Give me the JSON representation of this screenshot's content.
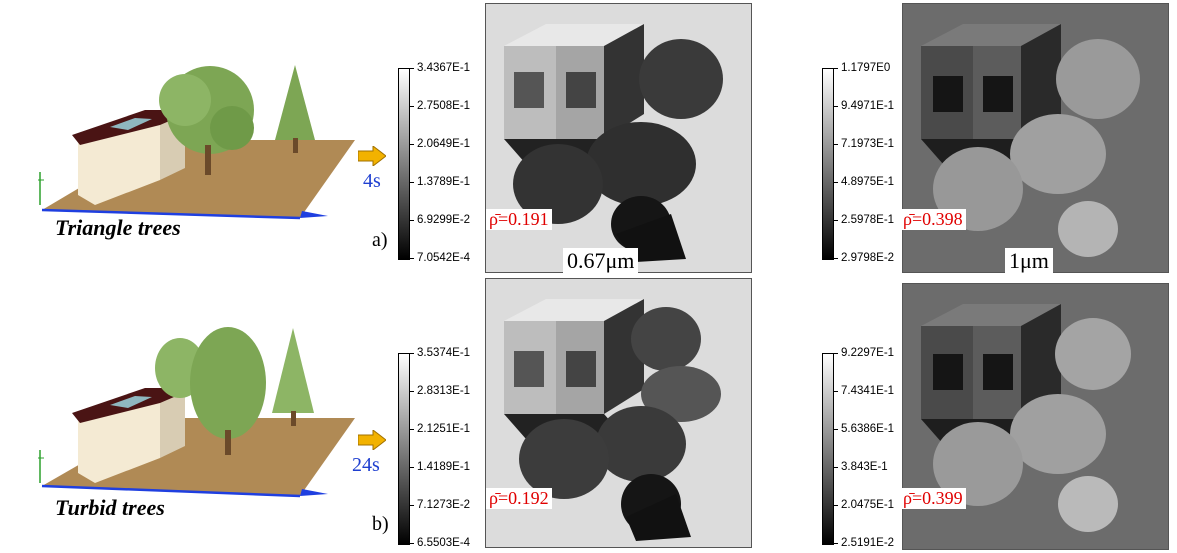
{
  "rows": [
    {
      "scene_label": "Triangle trees",
      "time": "4s",
      "panel_letter": "a)",
      "tree_style": "triangle",
      "panels": [
        {
          "colorbar_labels": [
            "3.4367E-1",
            "2.7508E-1",
            "2.0649E-1",
            "1.3789E-1",
            "6.9299E-2",
            "7.0542E-4"
          ],
          "rho": "ρ̄=0.191",
          "background": "#dcdcdc",
          "wavelength": "0.67μm"
        },
        {
          "colorbar_labels": [
            "1.1797E0",
            "9.4971E-1",
            "7.1973E-1",
            "4.8975E-1",
            "2.5978E-1",
            "2.9798E-2"
          ],
          "rho": "ρ̄=0.398",
          "background": "#6c6c6c",
          "wavelength": "1μm"
        }
      ]
    },
    {
      "scene_label": "Turbid trees",
      "time": "24s",
      "panel_letter": "b)",
      "tree_style": "turbid",
      "panels": [
        {
          "colorbar_labels": [
            "3.5374E-1",
            "2.8313E-1",
            "2.1251E-1",
            "1.4189E-1",
            "7.1273E-2",
            "6.5503E-4"
          ],
          "rho": "ρ̄=0.192",
          "background": "#dcdcdc"
        },
        {
          "colorbar_labels": [
            "9.2297E-1",
            "7.4341E-1",
            "5.6386E-1",
            "3.843E-1",
            "2.0475E-1",
            "2.5191E-2"
          ],
          "rho": "ρ̄=0.399",
          "background": "#6c6c6c"
        }
      ]
    }
  ],
  "colors": {
    "ground": "#b08a55",
    "wall": "#f4ead3",
    "wall_side": "#d8ccb3",
    "roof": "#4a1414",
    "skylight": "#8fb7bf",
    "tree_green": "#7da654",
    "trunk": "#6b4a2a",
    "arrow": "#f2b200",
    "time_text": "#1f3fd0",
    "rho_text": "#e00000"
  }
}
